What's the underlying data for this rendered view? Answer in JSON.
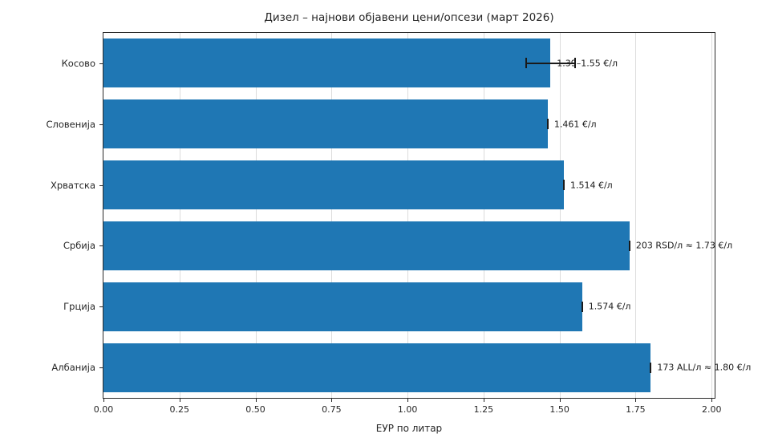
{
  "chart_data": {
    "type": "bar",
    "orientation": "horizontal",
    "title": "Дизел – најнови објавени цени/опсези (март 2026)",
    "xlabel": "ЕУР по литар",
    "categories": [
      "Косово",
      "Словенија",
      "Хрватска",
      "Србија",
      "Грција",
      "Албанија"
    ],
    "values": [
      1.47,
      1.461,
      1.514,
      1.73,
      1.574,
      1.8
    ],
    "error_ranges": [
      [
        1.39,
        1.55
      ],
      [
        1.461,
        1.461
      ],
      [
        1.514,
        1.514
      ],
      [
        1.73,
        1.73
      ],
      [
        1.574,
        1.574
      ],
      [
        1.8,
        1.8
      ]
    ],
    "annotations": [
      "1.39–1.55 €/л",
      "1.461 €/л",
      "1.514 €/л",
      "203 RSD/л ≈ 1.73 €/л",
      "1.574 €/л",
      "173 ALL/л ≈ 1.80 €/л"
    ],
    "xlim": [
      0,
      2.0
    ],
    "xticks": [
      "0.00",
      "0.25",
      "0.50",
      "0.75",
      "1.00",
      "1.25",
      "1.50",
      "1.75",
      "2.00"
    ],
    "bar_color": "#1f77b4",
    "grid": true,
    "gridline_color": "#dcdcdc",
    "legend": "none"
  }
}
